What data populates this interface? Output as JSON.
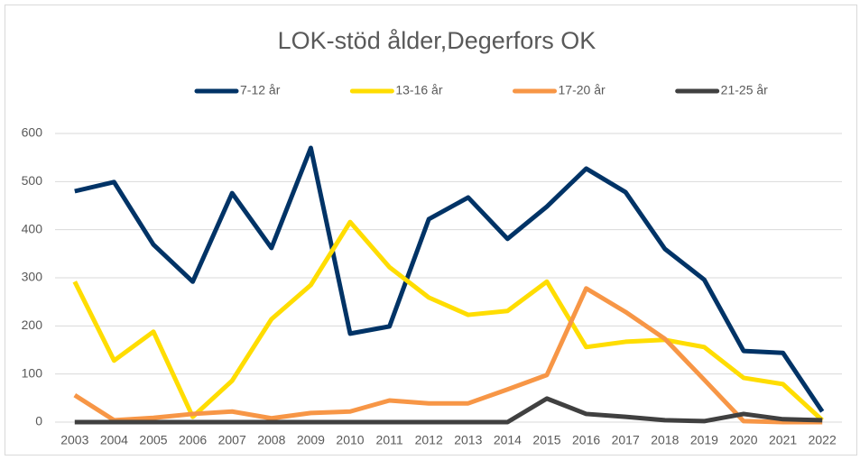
{
  "chart_data": {
    "type": "line",
    "title": "LOK-stöd ålder,Degerfors OK",
    "categories": [
      "2003",
      "2004",
      "2005",
      "2006",
      "2007",
      "2008",
      "2009",
      "2010",
      "2011",
      "2012",
      "2013",
      "2014",
      "2015",
      "2016",
      "2017",
      "2018",
      "2019",
      "2020",
      "2021",
      "2022"
    ],
    "series": [
      {
        "name": "7-12 år",
        "color": "#003366",
        "values": [
          480,
          499,
          369,
          292,
          476,
          362,
          570,
          184,
          199,
          422,
          467,
          381,
          448,
          527,
          478,
          360,
          296,
          148,
          144,
          22
        ]
      },
      {
        "name": "13-16 år",
        "color": "#ffdd00",
        "values": [
          292,
          128,
          188,
          11,
          86,
          214,
          285,
          416,
          322,
          259,
          223,
          231,
          292,
          156,
          167,
          171,
          156,
          92,
          79,
          4
        ]
      },
      {
        "name": "17-20 år",
        "color": "#f79646",
        "values": [
          56,
          4,
          9,
          17,
          22,
          8,
          19,
          22,
          45,
          39,
          39,
          68,
          98,
          278,
          229,
          173,
          88,
          2,
          0,
          0
        ]
      },
      {
        "name": "21-25 år",
        "color": "#404040",
        "values": [
          0,
          0,
          0,
          0,
          0,
          0,
          0,
          0,
          0,
          0,
          0,
          0,
          49,
          17,
          11,
          4,
          2,
          17,
          6,
          4
        ]
      }
    ],
    "ylim": [
      0,
      600
    ],
    "yticks": [
      0,
      100,
      200,
      300,
      400,
      500,
      600
    ],
    "grid": true,
    "legend": "top"
  }
}
